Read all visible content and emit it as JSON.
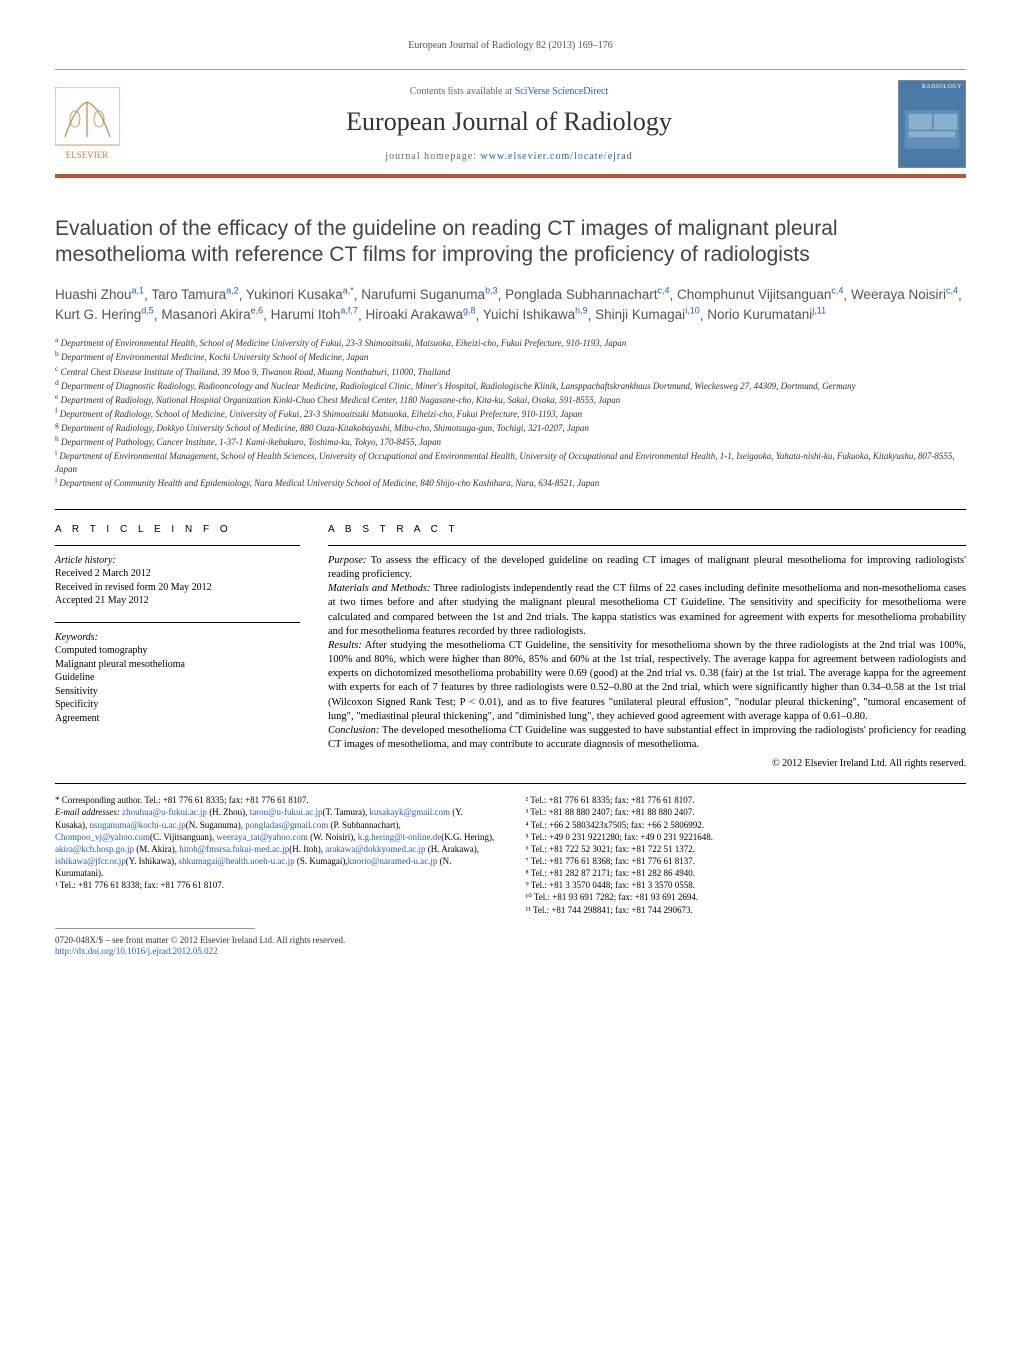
{
  "runningHead": "European Journal of Radiology 82 (2013) 169–176",
  "masthead": {
    "contentsPrefix": "Contents lists available at ",
    "contentsLink": "SciVerse ScienceDirect",
    "journalName": "European Journal of Radiology",
    "homepagePrefix": "journal homepage: ",
    "homepageLink": "www.elsevier.com/locate/ejrad",
    "coverLabel": "RADIOLOGY"
  },
  "title": "Evaluation of the efficacy of the guideline on reading CT images of malignant pleural mesothelioma with reference CT films for improving the proficiency of radiologists",
  "authors": [
    {
      "name": "Huashi Zhou",
      "marks": "a,1"
    },
    {
      "name": "Taro Tamura",
      "marks": "a,2"
    },
    {
      "name": "Yukinori Kusaka",
      "marks": "a,*"
    },
    {
      "name": "Narufumi Suganuma",
      "marks": "b,3"
    },
    {
      "name": "Ponglada Subhannachart",
      "marks": "c,4"
    },
    {
      "name": "Chomphunut Vijitsanguan",
      "marks": "c,4"
    },
    {
      "name": "Weeraya Noisiri",
      "marks": "c,4"
    },
    {
      "name": "Kurt G. Hering",
      "marks": "d,5"
    },
    {
      "name": "Masanori Akira",
      "marks": "e,6"
    },
    {
      "name": "Harumi Itoh",
      "marks": "a,f,7"
    },
    {
      "name": "Hiroaki Arakawa",
      "marks": "g,8"
    },
    {
      "name": "Yuichi Ishikawa",
      "marks": "h,9"
    },
    {
      "name": "Shinji Kumagai",
      "marks": "i,10"
    },
    {
      "name": "Norio Kurumatani",
      "marks": "j,11"
    }
  ],
  "affiliations": [
    {
      "key": "a",
      "text": "Department of Environmental Health, School of Medicine University of Fukui, 23-3 Shimoaitsuki, Matsuoka, Eiheizi-cho, Fukui Prefecture, 910-1193, Japan"
    },
    {
      "key": "b",
      "text": "Department of Environmental Medicine, Kochi University School of Medicine, Japan"
    },
    {
      "key": "c",
      "text": "Central Chest Disease Institute of Thailand, 39 Moo 9, Tiwanon Road, Muang Nonthaburi, 11000, Thailand"
    },
    {
      "key": "d",
      "text": "Department of Diagnostic Radiology, Radiooncology and Nuclear Medicine, Radiological Clinic, Miner's Hospital, Radiologische Klinik, Lansppachaftskrankhaus Dortmund, Wieckesweg 27, 44309, Dortmund, Germany"
    },
    {
      "key": "e",
      "text": "Department of Radiology, National Hospital Organization Kinki-Chuo Chest Medical Center, 1180 Nagasone-cho, Kita-ku, Sakai, Osaka, 591-8555, Japan"
    },
    {
      "key": "f",
      "text": "Department of Radiology, School of Medicine, University of Fukui, 23-3 Shimoaitsuki Matsuoka, Eiheizi-cho, Fukui Prefecture, 910-1193, Japan"
    },
    {
      "key": "g",
      "text": "Department of Radiology, Dokkyo University School of Medicine, 880 Oaza-Kitakobayashi, Mibu-cho, Shimotsuga-gun, Tochigi, 321-0207, Japan"
    },
    {
      "key": "h",
      "text": "Department of Pathology, Cancer Institute, 1-37-1 Kami-ikebukuro, Toshima-ku, Tokyo, 170-8455, Japan"
    },
    {
      "key": "i",
      "text": "Department of Environmental Management, School of Health Sciences, University of Occupational and Environmental Health, University of Occupational and Environmental Health, 1-1, Iseigaoka, Yahata-nishi-ku, Fukuoka, Kitakyushu, 807-8555, Japan"
    },
    {
      "key": "j",
      "text": "Department of Community Health and Epidemiology, Nara Medical University School of Medicine, 840 Shijo-cho Kashihara, Nara, 634-8521, Japan"
    }
  ],
  "articleInfo": {
    "heading": "A R T I C L E   I N F O",
    "historyHead": "Article history:",
    "received": "Received 2 March 2012",
    "revised": "Received in revised form 20 May 2012",
    "accepted": "Accepted 21 May 2012",
    "keywordsHead": "Keywords:",
    "keywords": [
      "Computed tomography",
      "Malignant pleural mesothelioma",
      "Guideline",
      "Sensitivity",
      "Specificity",
      "Agreement"
    ]
  },
  "abstract": {
    "heading": "A B S T R A C T",
    "purposeLabel": "Purpose:",
    "purpose": " To assess the efficacy of the developed guideline on reading CT images of malignant pleural mesothelioma for improving radiologists' reading proficiency.",
    "methodsLabel": "Materials and Methods:",
    "methods": " Three radiologists independently read the CT films of 22 cases including definite mesothelioma and non-mesothelioma cases at two times before and after studying the malignant pleural mesothelioma CT Guideline. The sensitivity and specificity for mesothelioma were calculated and compared between the 1st and 2nd trials. The kappa statistics was examined for agreement with experts for mesothelioma probability and for mesothelioma features recorded by three radiologists.",
    "resultsLabel": "Results:",
    "results": " After studying the mesothelioma CT Guideline, the sensitivity for mesothelioma shown by the three radiologists at the 2nd trial was 100%, 100% and 80%, which were higher than 80%, 85% and 60% at the 1st trial, respectively. The average kappa for agreement between radiologists and experts on dichotomized mesothelioma probability were 0.69 (good) at the 2nd trial vs. 0.38 (fair) at the 1st trial. The average kappa for the agreement with experts for each of 7 features by three radiologists were 0.52–0.80 at the 2nd trial, which were significantly higher than 0.34–0.58 at the 1st trial (Wilcoxon Signed Rank Test; P < 0.01), and as to five features \"unilateral pleural effusion\", \"nodular pleural thickening\", \"tumoral encasement of lung\", \"mediastinal pleural thickening\", and \"diminished lung\", they achieved good agreement with average kappa of 0.61–0.80.",
    "conclusionLabel": "Conclusion:",
    "conclusion": " The developed mesothelioma CT Guideline was suggested to have substantial effect in improving the radiologists' proficiency for reading CT images of mesothelioma, and may contribute to accurate diagnosis of mesothelioma.",
    "copyright": "© 2012 Elsevier Ireland Ltd. All rights reserved."
  },
  "footnotesLeft": {
    "corresponding": "* Corresponding author. Tel.: +81 776 61 8335; fax: +81 776 61 8107.",
    "emailLabel": "E-mail addresses:",
    "emails": [
      {
        "addr": "zhouhua@u-fukui.ac.jp",
        "who": " (H. Zhou), "
      },
      {
        "addr": "tarou@u-fukui.ac.jp",
        "who": ""
      },
      {
        "addr": "",
        "who": "(T. Tamura), "
      },
      {
        "addr": "kusakayk@gmail.com",
        "who": " (Y. Kusaka), "
      },
      {
        "addr": "nsuganuma@kochi-u.ac.jp",
        "who": ""
      },
      {
        "addr": "",
        "who": "(N. Suganuma), "
      },
      {
        "addr": "pongladas@gmail.com",
        "who": " (P. Subhannachart), "
      },
      {
        "addr": "Chompoo_vj@yahoo.com",
        "who": ""
      },
      {
        "addr": "",
        "who": "(C. Vijitsanguan), "
      },
      {
        "addr": "weeraya_tat@yahoo.com",
        "who": " (W. Noisiri), "
      },
      {
        "addr": "k.g.hering@t-online.de",
        "who": ""
      },
      {
        "addr": "",
        "who": "(K.G. Hering), "
      },
      {
        "addr": "akira@kch.hosp.go.jp",
        "who": " (M. Akira), "
      },
      {
        "addr": "hitoh@fmsrsa.fukui-med.ac.jp",
        "who": ""
      },
      {
        "addr": "",
        "who": "(H. Itoh), "
      },
      {
        "addr": "arakawa@dokkyomed.ac.jp",
        "who": " (H. Arakawa), "
      },
      {
        "addr": "ishikawa@jfcr.or.jp",
        "who": ""
      },
      {
        "addr": "",
        "who": "(Y. Ishikawa), "
      },
      {
        "addr": "shkumagai@health.uoeh-u.ac.jp",
        "who": " (S. Kumagai),"
      },
      {
        "addr": "knorio@naramed-u.ac.jp",
        "who": " (N. Kurumatani)."
      }
    ],
    "tel1": "¹ Tel.: +81 776 61 8338; fax: +81 776 61 8107."
  },
  "footnotesRight": [
    "² Tel.: +81 776 61 8335; fax: +81 776 61 8107.",
    "³ Tel.: +81 88 880 2407; fax: +81 88 880 2407.",
    "⁴ Tel.: +66 2 5803423x7505; fax: +66 2 5806992.",
    "⁵ Tel.: +49 0 231 9221280; fax: +49 0 231 9221648.",
    "⁶ Tel.: +81 722 52 3021; fax: +81 722 51 1372.",
    "⁷ Tel.: +81 776 61 8368; fax: +81 776 61 8137.",
    "⁸ Tel.: +81 282 87 2171; fax: +81 282 86 4940.",
    "⁹ Tel.: +81 3 3570 0448; fax: +81 3 3570 0558.",
    "¹⁰ Tel.: +81 93 691 7282; fax: +81 93 691 2694.",
    "¹¹ Tel.: +81 744 298841; fax: +81 744 290673."
  ],
  "footer": {
    "line1": "0720-048X/$ – see front matter © 2012 Elsevier Ireland Ltd. All rights reserved.",
    "doi": "http://dx.doi.org/10.1016/j.ejrad.2012.05.022"
  },
  "colors": {
    "accent": "#b8572f",
    "link": "#2a5db0",
    "coverBg": "#4a7ba8"
  }
}
